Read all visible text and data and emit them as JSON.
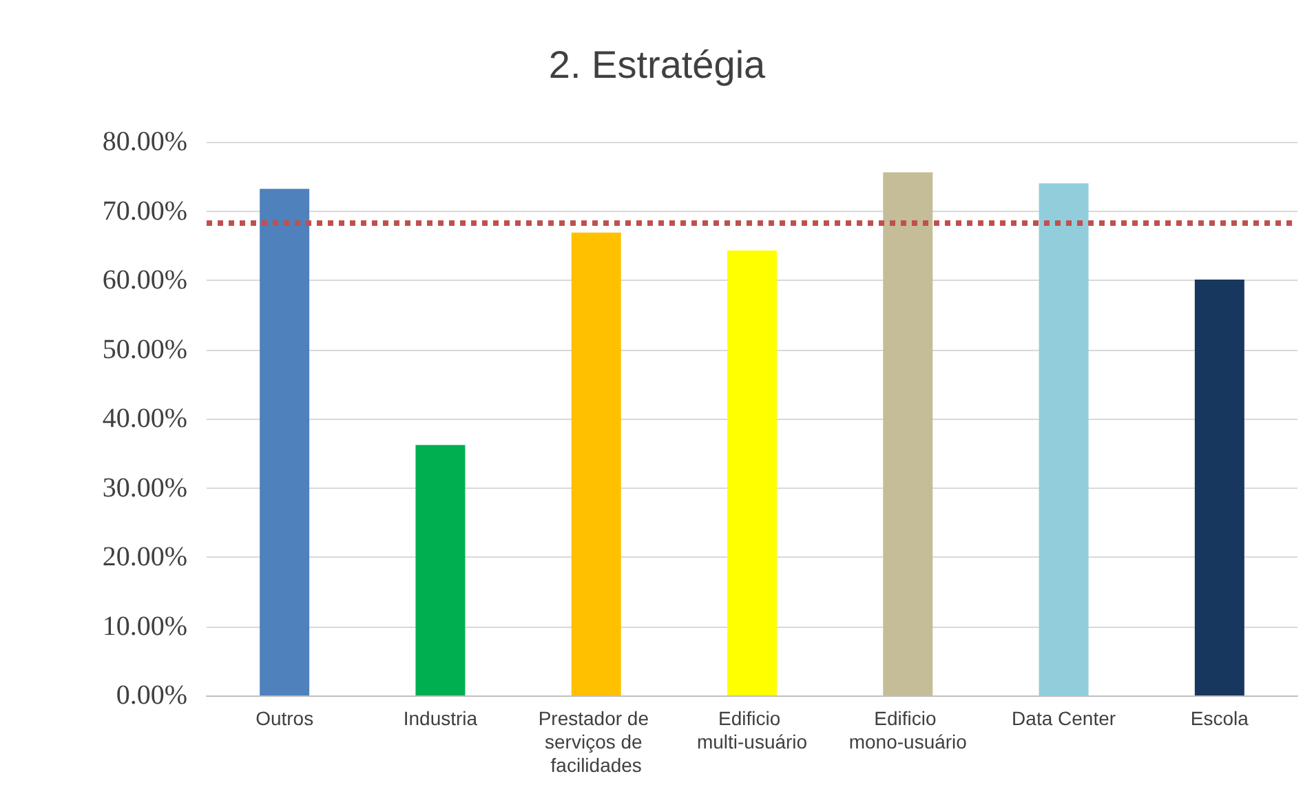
{
  "chart_data": {
    "type": "bar",
    "title": "2. Estratégia",
    "categories": [
      "Outros",
      "Industria",
      "Prestador de serviços de facilidades",
      "Edificio multi-usuário",
      "Edificio mono-usuário",
      "Data Center",
      "Escola"
    ],
    "values": [
      73.2,
      36.2,
      66.9,
      64.3,
      75.6,
      74.0,
      60.1
    ],
    "colors": [
      "#4f81bd",
      "#00b050",
      "#ffc000",
      "#ffff00",
      "#c4bd97",
      "#92cddc",
      "#17375e"
    ],
    "ylim": [
      0,
      80
    ],
    "yticks": [
      {
        "value": 0,
        "label": "0.00%"
      },
      {
        "value": 10,
        "label": "10.00%"
      },
      {
        "value": 20,
        "label": "20.00%"
      },
      {
        "value": 30,
        "label": "30.00%"
      },
      {
        "value": 40,
        "label": "40.00%"
      },
      {
        "value": 50,
        "label": "50.00%"
      },
      {
        "value": 60,
        "label": "60.00%"
      },
      {
        "value": 70,
        "label": "70.00%"
      },
      {
        "value": 80,
        "label": "80.00%"
      }
    ],
    "ref_lines": [
      {
        "axis": "y",
        "value": 68.4,
        "color": "#c0504d",
        "line_style": "dotted"
      }
    ],
    "grid": "y"
  }
}
